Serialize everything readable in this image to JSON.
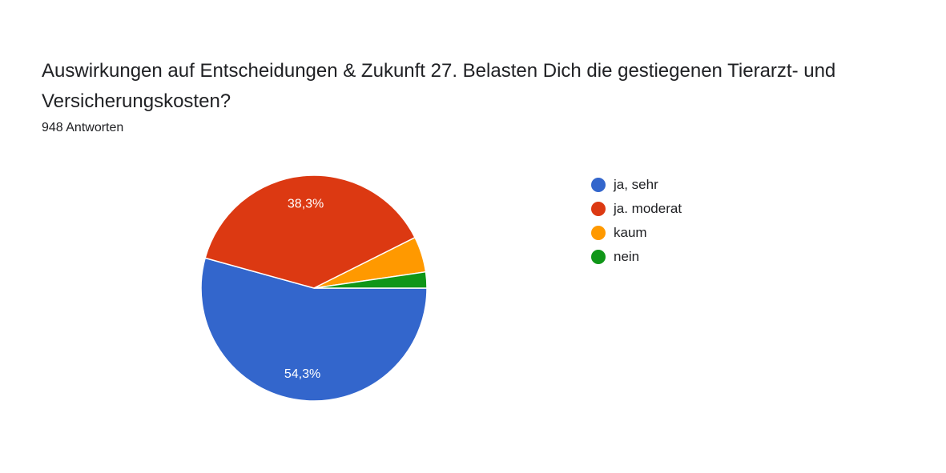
{
  "header": {
    "title": "Auswirkungen auf Entscheidungen & Zukunft   27. Belasten Dich die gestiegenen Tierarzt- und Versicherungskosten?",
    "responses": "948 Antworten"
  },
  "chart_data": {
    "type": "pie",
    "title": "Auswirkungen auf Entscheidungen & Zukunft   27. Belasten Dich die gestiegenen Tierarzt- und Versicherungskosten?",
    "subtitle": "948 Antworten",
    "categories": [
      "ja, sehr",
      "ja. moderat",
      "kaum",
      "nein"
    ],
    "values": [
      54.3,
      38.3,
      5.1,
      2.3
    ],
    "data_labels": [
      "54,3%",
      "38,3%",
      "",
      ""
    ],
    "colors": [
      "#3366cc",
      "#dc3912",
      "#ff9900",
      "#109618"
    ],
    "start_angle_deg": 90,
    "direction": "clockwise",
    "legend_position": "right"
  }
}
